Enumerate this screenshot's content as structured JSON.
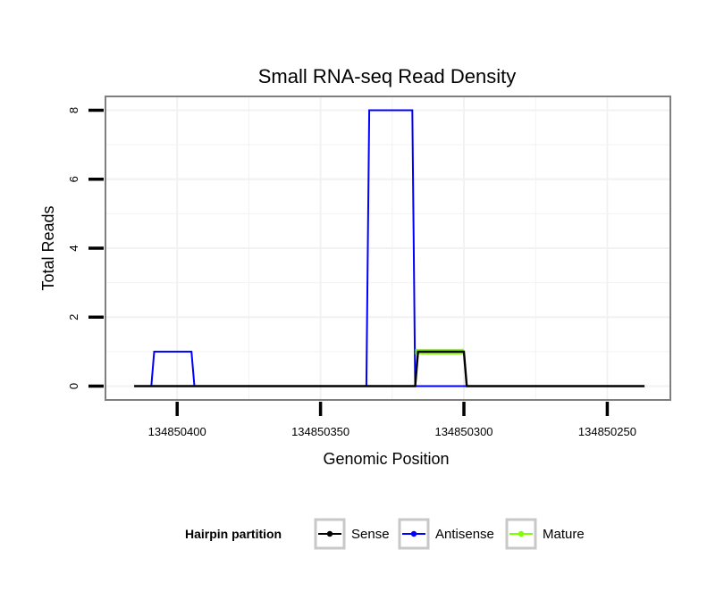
{
  "chart_data": {
    "type": "line",
    "title": "Small RNA-seq Read Density",
    "xlabel": "Genomic Position",
    "ylabel": "Total Reads",
    "x_reversed": true,
    "xlim": [
      134850425,
      134850228
    ],
    "ylim": [
      -0.4,
      8.4
    ],
    "x_ticks": [
      134850400,
      134850350,
      134850300,
      134850250
    ],
    "x_tick_labels": [
      "134850400",
      "134850350",
      "134850300",
      "134850250"
    ],
    "y_ticks": [
      0,
      2,
      4,
      6,
      8
    ],
    "y_tick_labels": [
      "0",
      "2",
      "4",
      "6",
      "8"
    ],
    "grid": true,
    "legend": {
      "title": "Hairpin partition",
      "position": "bottom",
      "entries": [
        {
          "name": "Sense",
          "color": "#000000"
        },
        {
          "name": "Antisense",
          "color": "#0000ff"
        },
        {
          "name": "Mature",
          "color": "#7fff00"
        }
      ]
    },
    "series": [
      {
        "name": "Sense",
        "color": "#000000",
        "x": [
          134850415,
          134850317,
          134850316,
          134850300,
          134850299,
          134850237
        ],
        "y": [
          0,
          0,
          1,
          1,
          0,
          0
        ]
      },
      {
        "name": "Antisense",
        "color": "#0000ff",
        "x": [
          134850409,
          134850408,
          134850395,
          134850394,
          134850334,
          134850333,
          134850318,
          134850317,
          134850299
        ],
        "y": [
          0,
          1,
          1,
          0,
          0,
          8,
          8,
          0,
          0
        ]
      },
      {
        "name": "Mature",
        "color": "#7fff00",
        "x": [
          134850317,
          134850300
        ],
        "y": [
          1,
          1
        ]
      }
    ]
  }
}
